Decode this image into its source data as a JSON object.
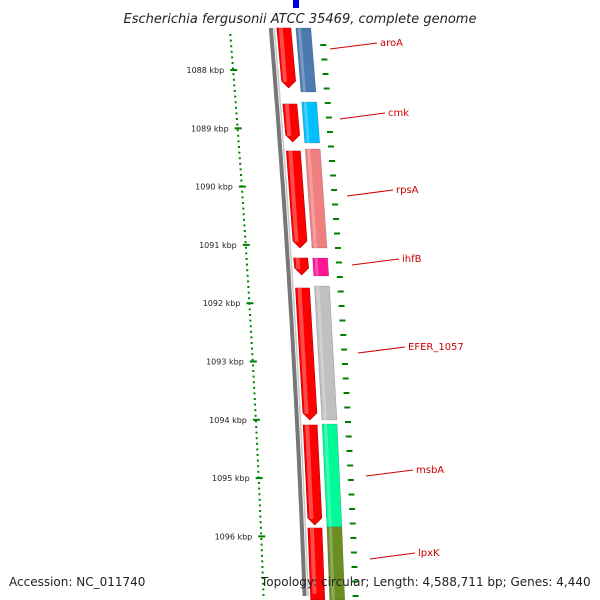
{
  "title": "Escherichia fergusonii ATCC 35469, complete genome",
  "footer": {
    "accession": "Accession: NC_011740",
    "summary": "Topology: circular; Length: 4,588,711 bp; Genes: 4,440"
  },
  "ticks": [
    {
      "label": "1088 kbp",
      "kbp": 1088
    },
    {
      "label": "1089 kbp",
      "kbp": 1089
    },
    {
      "label": "1090 kbp",
      "kbp": 1090
    },
    {
      "label": "1091 kbp",
      "kbp": 1091
    },
    {
      "label": "1092 kbp",
      "kbp": 1092
    },
    {
      "label": "1093 kbp",
      "kbp": 1093
    },
    {
      "label": "1094 kbp",
      "kbp": 1094
    },
    {
      "label": "1095 kbp",
      "kbp": 1095
    },
    {
      "label": "1096 kbp",
      "kbp": 1096
    }
  ],
  "genes": [
    {
      "name": "aroA",
      "color": "#4a7aaf"
    },
    {
      "name": "cmk",
      "color": "#00bfff"
    },
    {
      "name": "rpsA",
      "color": "#f08080"
    },
    {
      "name": "ihfB",
      "color": "#ff1493"
    },
    {
      "name": "EFER_1057",
      "color": "#c0c0c0"
    },
    {
      "name": "msbA",
      "color": "#00fa9a"
    },
    {
      "name": "lpxK",
      "color": "#6b8e23"
    }
  ],
  "colors": {
    "cds": "#ff0000",
    "backbone": "#777777",
    "tick": "#008000",
    "label_line": "#cc0000"
  }
}
